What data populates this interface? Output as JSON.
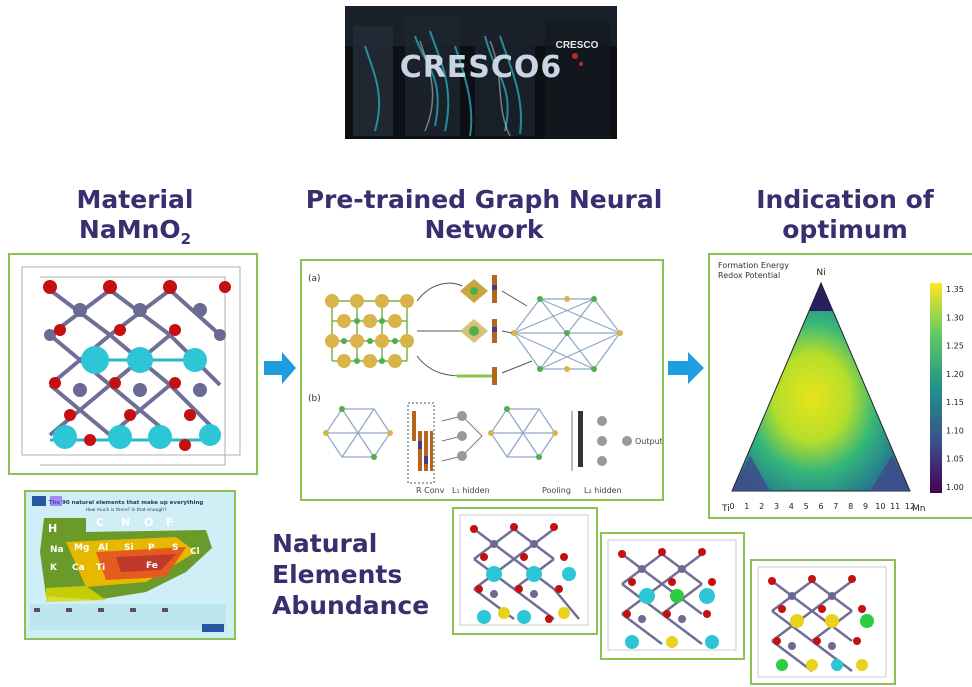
{
  "banner": {
    "title": "CRESCO6",
    "logo": "CRESCO"
  },
  "columns": {
    "material": {
      "line1": "Material",
      "formula_base": "NaMnO",
      "formula_sub": "2"
    },
    "gnn": {
      "line1": "Pre-trained Graph Neural",
      "line2": "Network"
    },
    "optimum": {
      "line1": "Indication of",
      "line2": "optimum"
    }
  },
  "gnn_diagram": {
    "label_a": "(a)",
    "label_b": "(b)",
    "rconv": "R Conv",
    "l1_hidden": "L₁ hidden",
    "pooling": "Pooling",
    "l2_hidden": "L₂ hidden",
    "output": "Output"
  },
  "ternary": {
    "legend_line1": "Formation Energy",
    "legend_line2": "Redox Potential",
    "vertex_top": "Ni",
    "vertex_left": "Ti",
    "vertex_right": "Mn",
    "bottom_ticks": [
      "0",
      "1",
      "2",
      "3",
      "4",
      "5",
      "6",
      "7",
      "8",
      "9",
      "10",
      "11",
      "12"
    ],
    "colorbar_ticks": [
      "1.35",
      "1.30",
      "1.25",
      "1.20",
      "1.15",
      "1.10",
      "1.05",
      "1.00"
    ],
    "colors": {
      "high": "#f2e51d",
      "mid": "#21918c",
      "low": "#440154"
    }
  },
  "periodic_poster": {
    "title": "The 90 natural elements that make up everything",
    "subtitle": "How much is there? Is that enough?",
    "symbols": [
      "H",
      "C",
      "N",
      "O",
      "F",
      "Na",
      "Mg",
      "Al",
      "Si",
      "P",
      "S",
      "Cl",
      "K",
      "Ca",
      "Ti",
      "Fe"
    ]
  },
  "abundance": {
    "line1": "Natural",
    "line2": "Elements",
    "line3": "Abundance"
  },
  "colors": {
    "heading": "#3a2e6e",
    "border": "#8cc152",
    "arrow": "#1e9ee0"
  }
}
